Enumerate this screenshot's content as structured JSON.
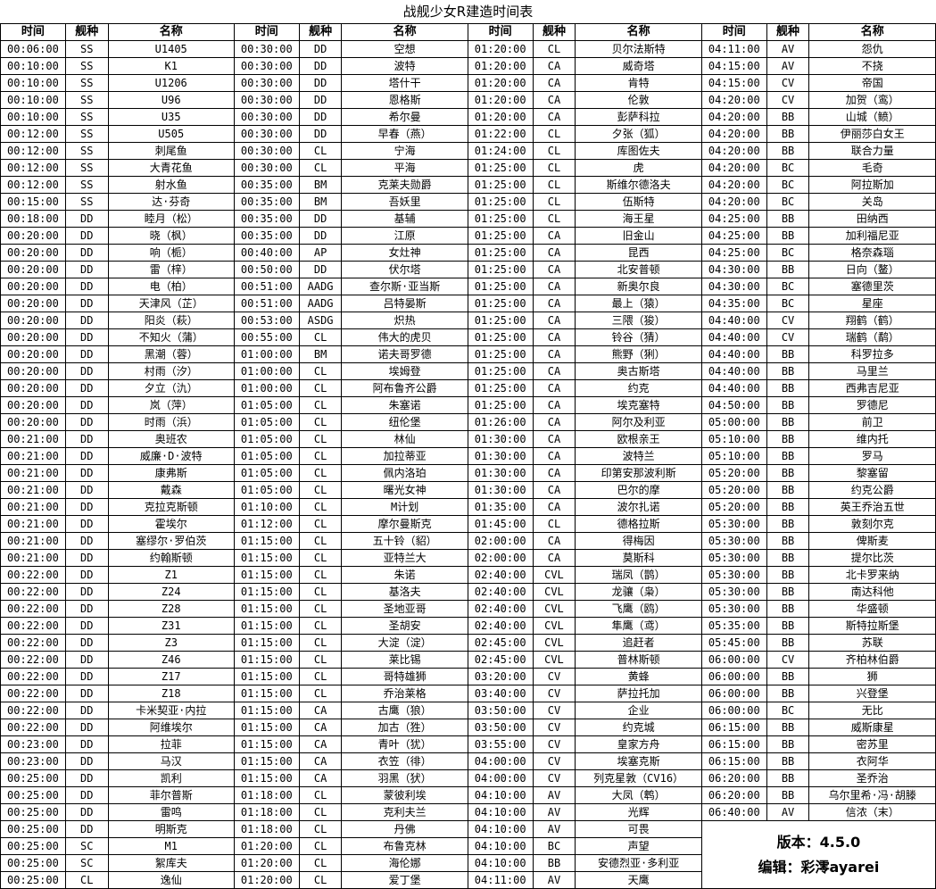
{
  "title": "战舰少女R建造时间表",
  "headers": [
    "时间",
    "舰种",
    "名称"
  ],
  "version": "版本：4.5.0",
  "editor": "编辑：彩澪ayarei",
  "columns": [
    [
      [
        "00:06:00",
        "SS",
        "U1405"
      ],
      [
        "00:10:00",
        "SS",
        "K1"
      ],
      [
        "00:10:00",
        "SS",
        "U1206"
      ],
      [
        "00:10:00",
        "SS",
        "U96"
      ],
      [
        "00:10:00",
        "SS",
        "U35"
      ],
      [
        "00:12:00",
        "SS",
        "U505"
      ],
      [
        "00:12:00",
        "SS",
        "刺尾鱼"
      ],
      [
        "00:12:00",
        "SS",
        "大青花鱼"
      ],
      [
        "00:12:00",
        "SS",
        "射水鱼"
      ],
      [
        "00:15:00",
        "SS",
        "达·芬奇"
      ],
      [
        "00:18:00",
        "DD",
        "睦月（松）"
      ],
      [
        "00:20:00",
        "DD",
        "晓（枫）"
      ],
      [
        "00:20:00",
        "DD",
        "响（栀）"
      ],
      [
        "00:20:00",
        "DD",
        "雷（梓）"
      ],
      [
        "00:20:00",
        "DD",
        "电（柏）"
      ],
      [
        "00:20:00",
        "DD",
        "天津风（芷）"
      ],
      [
        "00:20:00",
        "DD",
        "阳炎（萩）"
      ],
      [
        "00:20:00",
        "DD",
        "不知火（蒲）"
      ],
      [
        "00:20:00",
        "DD",
        "黑潮（蓉）"
      ],
      [
        "00:20:00",
        "DD",
        "村雨（汐）"
      ],
      [
        "00:20:00",
        "DD",
        "夕立（氿）"
      ],
      [
        "00:20:00",
        "DD",
        "岚（萍）"
      ],
      [
        "00:20:00",
        "DD",
        "时雨（浜）"
      ],
      [
        "00:21:00",
        "DD",
        "奥班农"
      ],
      [
        "00:21:00",
        "DD",
        "威廉·D·波特"
      ],
      [
        "00:21:00",
        "DD",
        "康弗斯"
      ],
      [
        "00:21:00",
        "DD",
        "戴森"
      ],
      [
        "00:21:00",
        "DD",
        "克拉克斯顿"
      ],
      [
        "00:21:00",
        "DD",
        "霍埃尔"
      ],
      [
        "00:21:00",
        "DD",
        "塞缪尔·罗伯茨"
      ],
      [
        "00:21:00",
        "DD",
        "约翰斯顿"
      ],
      [
        "00:22:00",
        "DD",
        "Z1"
      ],
      [
        "00:22:00",
        "DD",
        "Z24"
      ],
      [
        "00:22:00",
        "DD",
        "Z28"
      ],
      [
        "00:22:00",
        "DD",
        "Z31"
      ],
      [
        "00:22:00",
        "DD",
        "Z3"
      ],
      [
        "00:22:00",
        "DD",
        "Z46"
      ],
      [
        "00:22:00",
        "DD",
        "Z17"
      ],
      [
        "00:22:00",
        "DD",
        "Z18"
      ],
      [
        "00:22:00",
        "DD",
        "卡米契亚·内拉"
      ],
      [
        "00:22:00",
        "DD",
        "阿维埃尔"
      ],
      [
        "00:23:00",
        "DD",
        "拉菲"
      ],
      [
        "00:23:00",
        "DD",
        "马汉"
      ],
      [
        "00:25:00",
        "DD",
        "凯利"
      ],
      [
        "00:25:00",
        "DD",
        "菲尔普斯"
      ],
      [
        "00:25:00",
        "DD",
        "雷鸣"
      ],
      [
        "00:25:00",
        "DD",
        "明斯克"
      ],
      [
        "00:25:00",
        "SC",
        "M1"
      ],
      [
        "00:25:00",
        "SC",
        "絮库夫"
      ],
      [
        "00:25:00",
        "CL",
        "逸仙"
      ]
    ],
    [
      [
        "00:30:00",
        "DD",
        "空想"
      ],
      [
        "00:30:00",
        "DD",
        "波特"
      ],
      [
        "00:30:00",
        "DD",
        "塔什干"
      ],
      [
        "00:30:00",
        "DD",
        "恩格斯"
      ],
      [
        "00:30:00",
        "DD",
        "希尔曼"
      ],
      [
        "00:30:00",
        "DD",
        "早春（燕）"
      ],
      [
        "00:30:00",
        "CL",
        "宁海"
      ],
      [
        "00:30:00",
        "CL",
        "平海"
      ],
      [
        "00:35:00",
        "BM",
        "克莱夫勋爵"
      ],
      [
        "00:35:00",
        "BM",
        "吾妖里"
      ],
      [
        "00:35:00",
        "DD",
        "基辅"
      ],
      [
        "00:35:00",
        "DD",
        "江原"
      ],
      [
        "00:40:00",
        "AP",
        "女灶神"
      ],
      [
        "00:50:00",
        "DD",
        "伏尔塔"
      ],
      [
        "00:51:00",
        "AADG",
        "查尔斯·亚当斯"
      ],
      [
        "00:51:00",
        "AADG",
        "吕特晏斯"
      ],
      [
        "00:53:00",
        "ASDG",
        "炽热"
      ],
      [
        "00:55:00",
        "CL",
        "伟大的虎贝"
      ],
      [
        "01:00:00",
        "BM",
        "诺夫哥罗德"
      ],
      [
        "01:00:00",
        "CL",
        "埃姆登"
      ],
      [
        "01:00:00",
        "CL",
        "阿布鲁齐公爵"
      ],
      [
        "01:05:00",
        "CL",
        "朱塞诺"
      ],
      [
        "01:05:00",
        "CL",
        "纽伦堡"
      ],
      [
        "01:05:00",
        "CL",
        "林仙"
      ],
      [
        "01:05:00",
        "CL",
        "加拉蒂亚"
      ],
      [
        "01:05:00",
        "CL",
        "佩内洛珀"
      ],
      [
        "01:05:00",
        "CL",
        "曙光女神"
      ],
      [
        "01:10:00",
        "CL",
        "M计划"
      ],
      [
        "01:12:00",
        "CL",
        "摩尔曼斯克"
      ],
      [
        "01:15:00",
        "CL",
        "五十铃（貂）"
      ],
      [
        "01:15:00",
        "CL",
        "亚特兰大"
      ],
      [
        "01:15:00",
        "CL",
        "朱诺"
      ],
      [
        "01:15:00",
        "CL",
        "基洛夫"
      ],
      [
        "01:15:00",
        "CL",
        "圣地亚哥"
      ],
      [
        "01:15:00",
        "CL",
        "圣胡安"
      ],
      [
        "01:15:00",
        "CL",
        "大淀（淀）"
      ],
      [
        "01:15:00",
        "CL",
        "莱比锡"
      ],
      [
        "01:15:00",
        "CL",
        "哥特雄狮"
      ],
      [
        "01:15:00",
        "CL",
        "乔治莱格"
      ],
      [
        "01:15:00",
        "CA",
        "古鹰（狼）"
      ],
      [
        "01:15:00",
        "CA",
        "加古（狌）"
      ],
      [
        "01:15:00",
        "CA",
        "青叶（犹）"
      ],
      [
        "01:15:00",
        "CA",
        "衣笠（徘）"
      ],
      [
        "01:15:00",
        "CA",
        "羽黑（犾）"
      ],
      [
        "01:18:00",
        "CL",
        "蒙彼利埃"
      ],
      [
        "01:18:00",
        "CL",
        "克利夫兰"
      ],
      [
        "01:18:00",
        "CL",
        "丹佛"
      ],
      [
        "01:20:00",
        "CL",
        "布鲁克林"
      ],
      [
        "01:20:00",
        "CL",
        "海伦娜"
      ],
      [
        "01:20:00",
        "CL",
        "爱丁堡"
      ]
    ],
    [
      [
        "01:20:00",
        "CL",
        "贝尔法斯特"
      ],
      [
        "01:20:00",
        "CA",
        "威奇塔"
      ],
      [
        "01:20:00",
        "CA",
        "肯特"
      ],
      [
        "01:20:00",
        "CA",
        "伦敦"
      ],
      [
        "01:20:00",
        "CA",
        "彭萨科拉"
      ],
      [
        "01:22:00",
        "CL",
        "夕张（狐）"
      ],
      [
        "01:24:00",
        "CL",
        "库图佐夫"
      ],
      [
        "01:25:00",
        "CL",
        "虎"
      ],
      [
        "01:25:00",
        "CL",
        "斯维尔德洛夫"
      ],
      [
        "01:25:00",
        "CL",
        "伍斯特"
      ],
      [
        "01:25:00",
        "CL",
        "海王星"
      ],
      [
        "01:25:00",
        "CA",
        "旧金山"
      ],
      [
        "01:25:00",
        "CA",
        "昆西"
      ],
      [
        "01:25:00",
        "CA",
        "北安普顿"
      ],
      [
        "01:25:00",
        "CA",
        "新奥尔良"
      ],
      [
        "01:25:00",
        "CA",
        "最上（猿）"
      ],
      [
        "01:25:00",
        "CA",
        "三隈（狻）"
      ],
      [
        "01:25:00",
        "CA",
        "铃谷（猜）"
      ],
      [
        "01:25:00",
        "CA",
        "熊野（猁）"
      ],
      [
        "01:25:00",
        "CA",
        "奥古斯塔"
      ],
      [
        "01:25:00",
        "CA",
        "约克"
      ],
      [
        "01:25:00",
        "CA",
        "埃克塞特"
      ],
      [
        "01:26:00",
        "CA",
        "阿尔及利亚"
      ],
      [
        "01:30:00",
        "CA",
        "欧根亲王"
      ],
      [
        "01:30:00",
        "CA",
        "波特兰"
      ],
      [
        "01:30:00",
        "CA",
        "印第安那波利斯"
      ],
      [
        "01:30:00",
        "CA",
        "巴尔的摩"
      ],
      [
        "01:35:00",
        "CA",
        "波尔扎诺"
      ],
      [
        "01:45:00",
        "CL",
        "德格拉斯"
      ],
      [
        "02:00:00",
        "CA",
        "得梅因"
      ],
      [
        "02:00:00",
        "CA",
        "莫斯科"
      ],
      [
        "02:40:00",
        "CVL",
        "瑞凤（鹊）"
      ],
      [
        "02:40:00",
        "CVL",
        "龙骧（枭）"
      ],
      [
        "02:40:00",
        "CVL",
        "飞鹰（鸥）"
      ],
      [
        "02:40:00",
        "CVL",
        "隼鹰（鸢）"
      ],
      [
        "02:45:00",
        "CVL",
        "追赶者"
      ],
      [
        "02:45:00",
        "CVL",
        "普林斯顿"
      ],
      [
        "03:20:00",
        "CV",
        "黄蜂"
      ],
      [
        "03:40:00",
        "CV",
        "萨拉托加"
      ],
      [
        "03:50:00",
        "CV",
        "企业"
      ],
      [
        "03:50:00",
        "CV",
        "约克城"
      ],
      [
        "03:55:00",
        "CV",
        "皇家方舟"
      ],
      [
        "04:00:00",
        "CV",
        "埃塞克斯"
      ],
      [
        "04:00:00",
        "CV",
        "列克星敦（CV16）"
      ],
      [
        "04:10:00",
        "AV",
        "大凤（鹎）"
      ],
      [
        "04:10:00",
        "AV",
        "光辉"
      ],
      [
        "04:10:00",
        "AV",
        "可畏"
      ],
      [
        "04:10:00",
        "BC",
        "声望"
      ],
      [
        "04:10:00",
        "BB",
        "安德烈亚·多利亚"
      ],
      [
        "04:11:00",
        "AV",
        "天鹰"
      ]
    ],
    [
      [
        "04:11:00",
        "AV",
        "怨仇"
      ],
      [
        "04:15:00",
        "AV",
        "不挠"
      ],
      [
        "04:15:00",
        "CV",
        "帝国"
      ],
      [
        "04:20:00",
        "CV",
        "加贺（鸾）"
      ],
      [
        "04:20:00",
        "BB",
        "山城（鲼）"
      ],
      [
        "04:20:00",
        "BB",
        "伊丽莎白女王"
      ],
      [
        "04:20:00",
        "BB",
        "联合力量"
      ],
      [
        "04:20:00",
        "BC",
        "毛奇"
      ],
      [
        "04:20:00",
        "BC",
        "阿拉斯加"
      ],
      [
        "04:20:00",
        "BC",
        "关岛"
      ],
      [
        "04:25:00",
        "BB",
        "田纳西"
      ],
      [
        "04:25:00",
        "BB",
        "加利福尼亚"
      ],
      [
        "04:25:00",
        "BC",
        "格奈森瑙"
      ],
      [
        "04:30:00",
        "BB",
        "日向（鳌）"
      ],
      [
        "04:30:00",
        "BC",
        "塞德里茨"
      ],
      [
        "04:35:00",
        "BC",
        "星座"
      ],
      [
        "04:40:00",
        "CV",
        "翔鹤（鹤）"
      ],
      [
        "04:40:00",
        "CV",
        "瑞鹤（鹬）"
      ],
      [
        "04:40:00",
        "BB",
        "科罗拉多"
      ],
      [
        "04:40:00",
        "BB",
        "马里兰"
      ],
      [
        "04:40:00",
        "BB",
        "西弗吉尼亚"
      ],
      [
        "04:50:00",
        "BB",
        "罗德尼"
      ],
      [
        "05:00:00",
        "BB",
        "前卫"
      ],
      [
        "05:10:00",
        "BB",
        "维内托"
      ],
      [
        "05:10:00",
        "BB",
        "罗马"
      ],
      [
        "05:20:00",
        "BB",
        "黎塞留"
      ],
      [
        "05:20:00",
        "BB",
        "约克公爵"
      ],
      [
        "05:20:00",
        "BB",
        "英王乔治五世"
      ],
      [
        "05:30:00",
        "BB",
        "敦刻尔克"
      ],
      [
        "05:30:00",
        "BB",
        "俾斯麦"
      ],
      [
        "05:30:00",
        "BB",
        "提尔比茨"
      ],
      [
        "05:30:00",
        "BB",
        "北卡罗来纳"
      ],
      [
        "05:30:00",
        "BB",
        "南达科他"
      ],
      [
        "05:30:00",
        "BB",
        "华盛顿"
      ],
      [
        "05:35:00",
        "BB",
        "斯特拉斯堡"
      ],
      [
        "05:45:00",
        "BB",
        "苏联"
      ],
      [
        "06:00:00",
        "CV",
        "齐柏林伯爵"
      ],
      [
        "06:00:00",
        "BB",
        "狮"
      ],
      [
        "06:00:00",
        "BB",
        "兴登堡"
      ],
      [
        "06:00:00",
        "BC",
        "无比"
      ],
      [
        "06:15:00",
        "BB",
        "威斯康星"
      ],
      [
        "06:15:00",
        "BB",
        "密苏里"
      ],
      [
        "06:15:00",
        "BB",
        "衣阿华"
      ],
      [
        "06:20:00",
        "BB",
        "圣乔治"
      ],
      [
        "06:20:00",
        "BB",
        "乌尔里希·冯·胡滕"
      ],
      [
        "06:40:00",
        "AV",
        "信浓（末）"
      ]
    ]
  ]
}
